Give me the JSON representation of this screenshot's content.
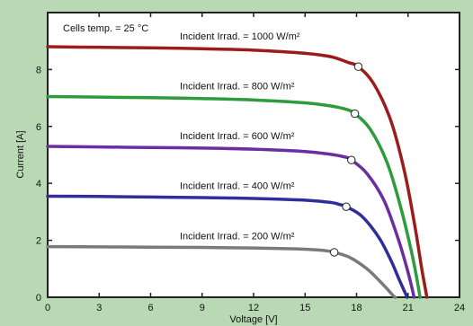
{
  "chart_data": {
    "type": "line",
    "xlabel": "Voltage [V]",
    "ylabel": "Current [A]",
    "xlim": [
      0,
      24
    ],
    "ylim": [
      0,
      10
    ],
    "xticks": [
      0,
      3,
      6,
      9,
      12,
      15,
      18,
      21,
      24
    ],
    "yticks": [
      0,
      2,
      4,
      6,
      8
    ],
    "grid": false,
    "annotation": "Cells temp.  = 25 °C",
    "colors": {
      "background": "#b9d9b4",
      "plot_area": "#ffffff"
    },
    "series": [
      {
        "name": "Incident Irrad. = 1000 W/m²",
        "color": "#9b1c1c",
        "points": [
          [
            0,
            8.8
          ],
          [
            3,
            8.78
          ],
          [
            6,
            8.76
          ],
          [
            9,
            8.73
          ],
          [
            12,
            8.68
          ],
          [
            15,
            8.57
          ],
          [
            16.5,
            8.45
          ],
          [
            17.5,
            8.25
          ],
          [
            18.1,
            8.1
          ],
          [
            19,
            7.5
          ],
          [
            20,
            6.2
          ],
          [
            20.8,
            4.4
          ],
          [
            21.4,
            2.5
          ],
          [
            21.8,
            1.0
          ],
          [
            22.1,
            0
          ]
        ],
        "mpp": [
          18.1,
          8.1
        ]
      },
      {
        "name": "Incident Irrad. = 800 W/m²",
        "color": "#2e9b3c",
        "points": [
          [
            0,
            7.05
          ],
          [
            3,
            7.03
          ],
          [
            6,
            7.01
          ],
          [
            9,
            6.98
          ],
          [
            12,
            6.93
          ],
          [
            15,
            6.83
          ],
          [
            16.5,
            6.72
          ],
          [
            17.4,
            6.6
          ],
          [
            17.9,
            6.45
          ],
          [
            18.8,
            5.9
          ],
          [
            19.8,
            4.7
          ],
          [
            20.6,
            3.1
          ],
          [
            21.2,
            1.6
          ],
          [
            21.5,
            0.7
          ],
          [
            21.7,
            0
          ]
        ],
        "mpp": [
          17.9,
          6.45
        ]
      },
      {
        "name": "Incident Irrad. = 600 W/m²",
        "color": "#6a2ea0",
        "points": [
          [
            0,
            5.3
          ],
          [
            3,
            5.28
          ],
          [
            6,
            5.26
          ],
          [
            9,
            5.24
          ],
          [
            12,
            5.2
          ],
          [
            15,
            5.12
          ],
          [
            16.5,
            5.02
          ],
          [
            17.3,
            4.93
          ],
          [
            17.7,
            4.82
          ],
          [
            18.6,
            4.35
          ],
          [
            19.6,
            3.4
          ],
          [
            20.4,
            2.1
          ],
          [
            20.9,
            1.1
          ],
          [
            21.2,
            0.4
          ],
          [
            21.35,
            0
          ]
        ],
        "mpp": [
          17.7,
          4.82
        ]
      },
      {
        "name": "Incident Irrad. = 400 W/m²",
        "color": "#2f2e9b",
        "points": [
          [
            0,
            3.55
          ],
          [
            3,
            3.54
          ],
          [
            6,
            3.52
          ],
          [
            9,
            3.5
          ],
          [
            12,
            3.47
          ],
          [
            15,
            3.41
          ],
          [
            16.5,
            3.33
          ],
          [
            17.0,
            3.26
          ],
          [
            17.4,
            3.18
          ],
          [
            18.3,
            2.85
          ],
          [
            19.3,
            2.1
          ],
          [
            20.0,
            1.3
          ],
          [
            20.5,
            0.6
          ],
          [
            20.8,
            0.2
          ],
          [
            20.95,
            0
          ]
        ],
        "mpp": [
          17.4,
          3.18
        ]
      },
      {
        "name": "Incident Irrad. = 200 W/m²",
        "color": "#7a7a7a",
        "points": [
          [
            0,
            1.78
          ],
          [
            3,
            1.77
          ],
          [
            6,
            1.76
          ],
          [
            9,
            1.75
          ],
          [
            12,
            1.73
          ],
          [
            14.5,
            1.7
          ],
          [
            15.8,
            1.66
          ],
          [
            16.4,
            1.62
          ],
          [
            16.7,
            1.58
          ],
          [
            17.6,
            1.4
          ],
          [
            18.6,
            1.0
          ],
          [
            19.3,
            0.6
          ],
          [
            19.8,
            0.28
          ],
          [
            20.1,
            0.08
          ],
          [
            20.25,
            0
          ]
        ],
        "mpp": [
          16.7,
          1.58
        ]
      }
    ]
  }
}
